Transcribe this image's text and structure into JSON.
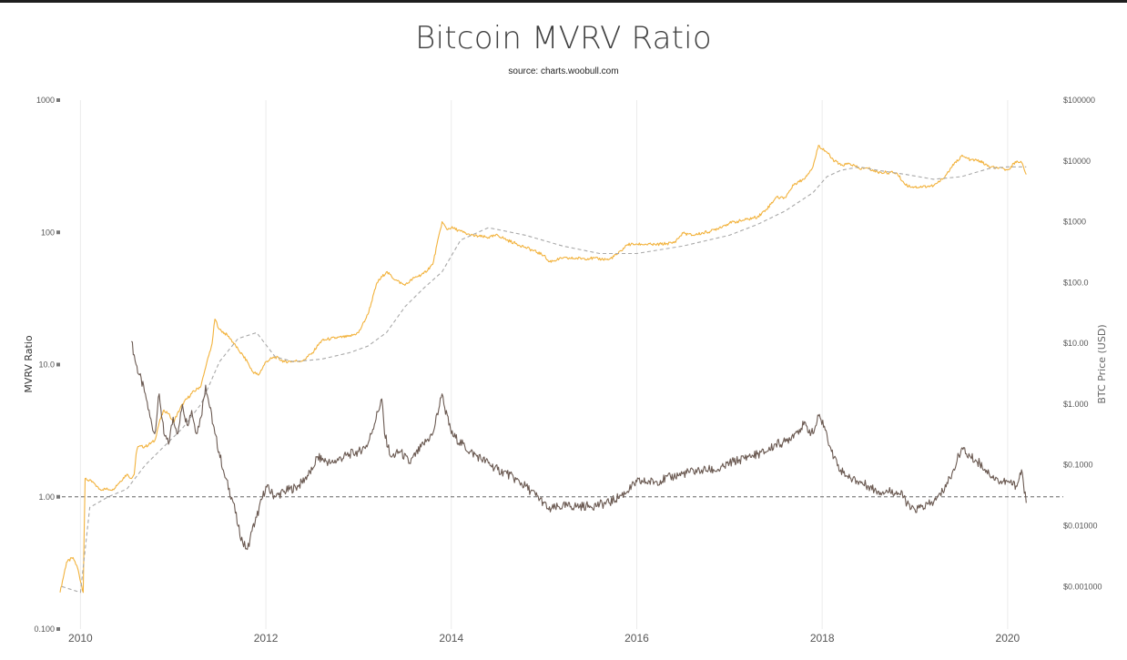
{
  "title": "Bitcoin MVRV Ratio",
  "subtitle": "source: charts.woobull.com",
  "colors": {
    "price": "#f2b23c",
    "realized": "#a8a8a8",
    "mvrv": "#6b5a52",
    "reference_line": "#666666",
    "grid": "#ebebeb",
    "top_bar": "#1e1e1e"
  },
  "chart_data": {
    "type": "line",
    "title": "Bitcoin MVRV Ratio",
    "subtitle": "source: charts.woobull.com",
    "x_ticks": [
      "2010",
      "2012",
      "2014",
      "2016",
      "2018",
      "2020"
    ],
    "xlim": [
      2009.8,
      2020.6
    ],
    "y_left": {
      "label": "MVRV Ratio",
      "scale": "log",
      "lim": [
        0.1,
        1000
      ],
      "ticks": [
        "0.100",
        "1.00",
        "10.0",
        "100",
        "1000"
      ],
      "tick_values": [
        0.1,
        1,
        10,
        100,
        1000
      ],
      "reference_line": 1.0
    },
    "y_right": {
      "label": "BTC Price (USD)",
      "scale": "log",
      "lim": [
        0.0002,
        100000
      ],
      "ticks": [
        "$0.001000",
        "$0.01000",
        "$0.1000",
        "$1.000",
        "$10.00",
        "$100.0",
        "$1000",
        "$10000",
        "$100000"
      ],
      "tick_values": [
        0.001,
        0.01,
        0.1,
        1,
        10,
        100,
        1000,
        10000,
        100000
      ]
    },
    "grid": "vertical",
    "legend": "none",
    "series": [
      {
        "axis": "right",
        "style": "solid",
        "x": [
          2009.78,
          2009.85,
          2009.92,
          2009.97,
          2010.03,
          2010.05,
          2010.15,
          2010.2,
          2010.35,
          2010.5,
          2010.55,
          2010.58,
          2010.6,
          2010.62,
          2010.7,
          2010.8,
          2010.85,
          2010.9,
          2010.95,
          2011.0,
          2011.1,
          2011.2,
          2011.3,
          2011.35,
          2011.42,
          2011.45,
          2011.5,
          2011.6,
          2011.7,
          2011.8,
          2011.85,
          2011.92,
          2012.0,
          2012.1,
          2012.2,
          2012.4,
          2012.5,
          2012.6,
          2012.7,
          2012.9,
          2013.0,
          2013.1,
          2013.2,
          2013.3,
          2013.4,
          2013.5,
          2013.6,
          2013.7,
          2013.8,
          2013.9,
          2013.95,
          2014.0,
          2014.1,
          2014.2,
          2014.4,
          2014.5,
          2014.6,
          2014.8,
          2015.0,
          2015.05,
          2015.2,
          2015.5,
          2015.7,
          2015.8,
          2015.9,
          2016.0,
          2016.2,
          2016.4,
          2016.5,
          2016.6,
          2016.8,
          2017.0,
          2017.2,
          2017.3,
          2017.4,
          2017.5,
          2017.6,
          2017.7,
          2017.8,
          2017.9,
          2017.96,
          2018.05,
          2018.1,
          2018.2,
          2018.3,
          2018.4,
          2018.5,
          2018.6,
          2018.8,
          2018.9,
          2019.0,
          2019.2,
          2019.3,
          2019.4,
          2019.5,
          2019.6,
          2019.7,
          2019.8,
          2019.9,
          2020.0,
          2020.1,
          2020.15,
          2020.2
        ],
        "values": [
          0.0008,
          0.0025,
          0.003,
          0.002,
          0.0008,
          0.06,
          0.05,
          0.04,
          0.04,
          0.07,
          0.06,
          0.07,
          0.15,
          0.2,
          0.2,
          0.25,
          0.5,
          0.8,
          0.7,
          0.5,
          1.0,
          1.5,
          2.0,
          4.0,
          10.0,
          25.0,
          17.0,
          13.0,
          8.0,
          5.0,
          3.5,
          3.0,
          5.0,
          6.0,
          5.0,
          5.2,
          7.0,
          11.0,
          12.0,
          13.0,
          15.0,
          30.0,
          100.0,
          150.0,
          110.0,
          90.0,
          120.0,
          140.0,
          200.0,
          1000.0,
          750.0,
          800.0,
          700.0,
          600.0,
          550.0,
          600.0,
          500.0,
          380.0,
          280.0,
          220.0,
          250.0,
          250.0,
          240.0,
          300.0,
          420.0,
          430.0,
          420.0,
          450.0,
          650.0,
          600.0,
          700.0,
          950.0,
          1100.0,
          1200.0,
          1600.0,
          2500.0,
          2500.0,
          4200.0,
          5000.0,
          8000.0,
          18000.0,
          14000.0,
          11000.0,
          8500.0,
          9000.0,
          7500.0,
          7500.0,
          6500.0,
          6400.0,
          4000.0,
          3700.0,
          3900.0,
          5000.0,
          8000.0,
          12000.0,
          10500.0,
          10000.0,
          8000.0,
          7500.0,
          7200.0,
          10000.0,
          9500.0,
          6000.0
        ]
      },
      {
        "axis": "right",
        "style": "dashed",
        "x": [
          2009.8,
          2010.0,
          2010.1,
          2010.3,
          2010.5,
          2010.7,
          2010.9,
          2011.1,
          2011.3,
          2011.5,
          2011.7,
          2011.9,
          2012.1,
          2012.3,
          2012.6,
          2012.9,
          2013.1,
          2013.3,
          2013.5,
          2013.7,
          2013.9,
          2014.1,
          2014.4,
          2014.8,
          2015.2,
          2015.6,
          2016.0,
          2016.5,
          2017.0,
          2017.3,
          2017.6,
          2017.9,
          2018.05,
          2018.2,
          2018.4,
          2018.6,
          2018.9,
          2019.2,
          2019.5,
          2019.8,
          2020.0,
          2020.2
        ],
        "values": [
          0.001,
          0.0008,
          0.02,
          0.03,
          0.04,
          0.1,
          0.2,
          0.4,
          1.0,
          5.0,
          12.0,
          15.0,
          6.0,
          5.0,
          5.5,
          7.0,
          9.0,
          15.0,
          40.0,
          80.0,
          150.0,
          500.0,
          800.0,
          600.0,
          400.0,
          300.0,
          300.0,
          400.0,
          600.0,
          900.0,
          1500.0,
          3000.0,
          5500.0,
          7000.0,
          8000.0,
          7000.0,
          6000.0,
          5000.0,
          5500.0,
          7500.0,
          8000.0,
          8000.0
        ]
      },
      {
        "axis": "left",
        "style": "solid",
        "x": [
          2010.55,
          2010.6,
          2010.7,
          2010.75,
          2010.8,
          2010.85,
          2010.9,
          2010.95,
          2011.0,
          2011.05,
          2011.1,
          2011.15,
          2011.2,
          2011.25,
          2011.3,
          2011.35,
          2011.45,
          2011.55,
          2011.65,
          2011.7,
          2011.75,
          2011.8,
          2011.85,
          2011.9,
          2012.0,
          2012.1,
          2012.2,
          2012.35,
          2012.5,
          2012.55,
          2012.7,
          2012.9,
          2013.0,
          2013.1,
          2013.25,
          2013.28,
          2013.35,
          2013.45,
          2013.55,
          2013.7,
          2013.8,
          2013.9,
          2013.92,
          2014.0,
          2014.2,
          2014.4,
          2014.5,
          2014.6,
          2014.8,
          2015.0,
          2015.05,
          2015.2,
          2015.5,
          2015.7,
          2015.9,
          2016.0,
          2016.2,
          2016.5,
          2016.7,
          2016.9,
          2017.0,
          2017.2,
          2017.4,
          2017.5,
          2017.6,
          2017.7,
          2017.8,
          2017.9,
          2017.97,
          2018.05,
          2018.1,
          2018.2,
          2018.3,
          2018.4,
          2018.5,
          2018.6,
          2018.8,
          2018.88,
          2018.95,
          2019.0,
          2019.2,
          2019.3,
          2019.4,
          2019.5,
          2019.6,
          2019.7,
          2019.8,
          2019.9,
          2020.0,
          2020.1,
          2020.15,
          2020.2
        ],
        "values": [
          15.0,
          10.0,
          6.0,
          4.0,
          3.0,
          6.0,
          3.0,
          2.5,
          4.0,
          3.0,
          5.0,
          3.5,
          4.5,
          3.0,
          4.0,
          7.0,
          3.0,
          1.5,
          0.9,
          0.6,
          0.45,
          0.4,
          0.55,
          0.7,
          1.2,
          1.0,
          1.1,
          1.2,
          1.6,
          2.0,
          1.8,
          2.1,
          2.2,
          2.5,
          5.5,
          3.0,
          2.0,
          2.2,
          1.8,
          2.5,
          3.0,
          6.0,
          5.0,
          3.0,
          2.2,
          1.8,
          1.6,
          1.5,
          1.2,
          0.9,
          0.8,
          0.85,
          0.85,
          0.9,
          1.1,
          1.3,
          1.3,
          1.5,
          1.6,
          1.6,
          1.8,
          2.0,
          2.2,
          2.5,
          2.6,
          3.0,
          3.5,
          3.0,
          4.2,
          3.0,
          2.2,
          1.6,
          1.4,
          1.3,
          1.2,
          1.1,
          1.1,
          1.0,
          0.8,
          0.8,
          0.9,
          1.1,
          1.5,
          2.3,
          2.0,
          1.8,
          1.5,
          1.3,
          1.3,
          1.2,
          1.6,
          0.9
        ]
      }
    ]
  }
}
